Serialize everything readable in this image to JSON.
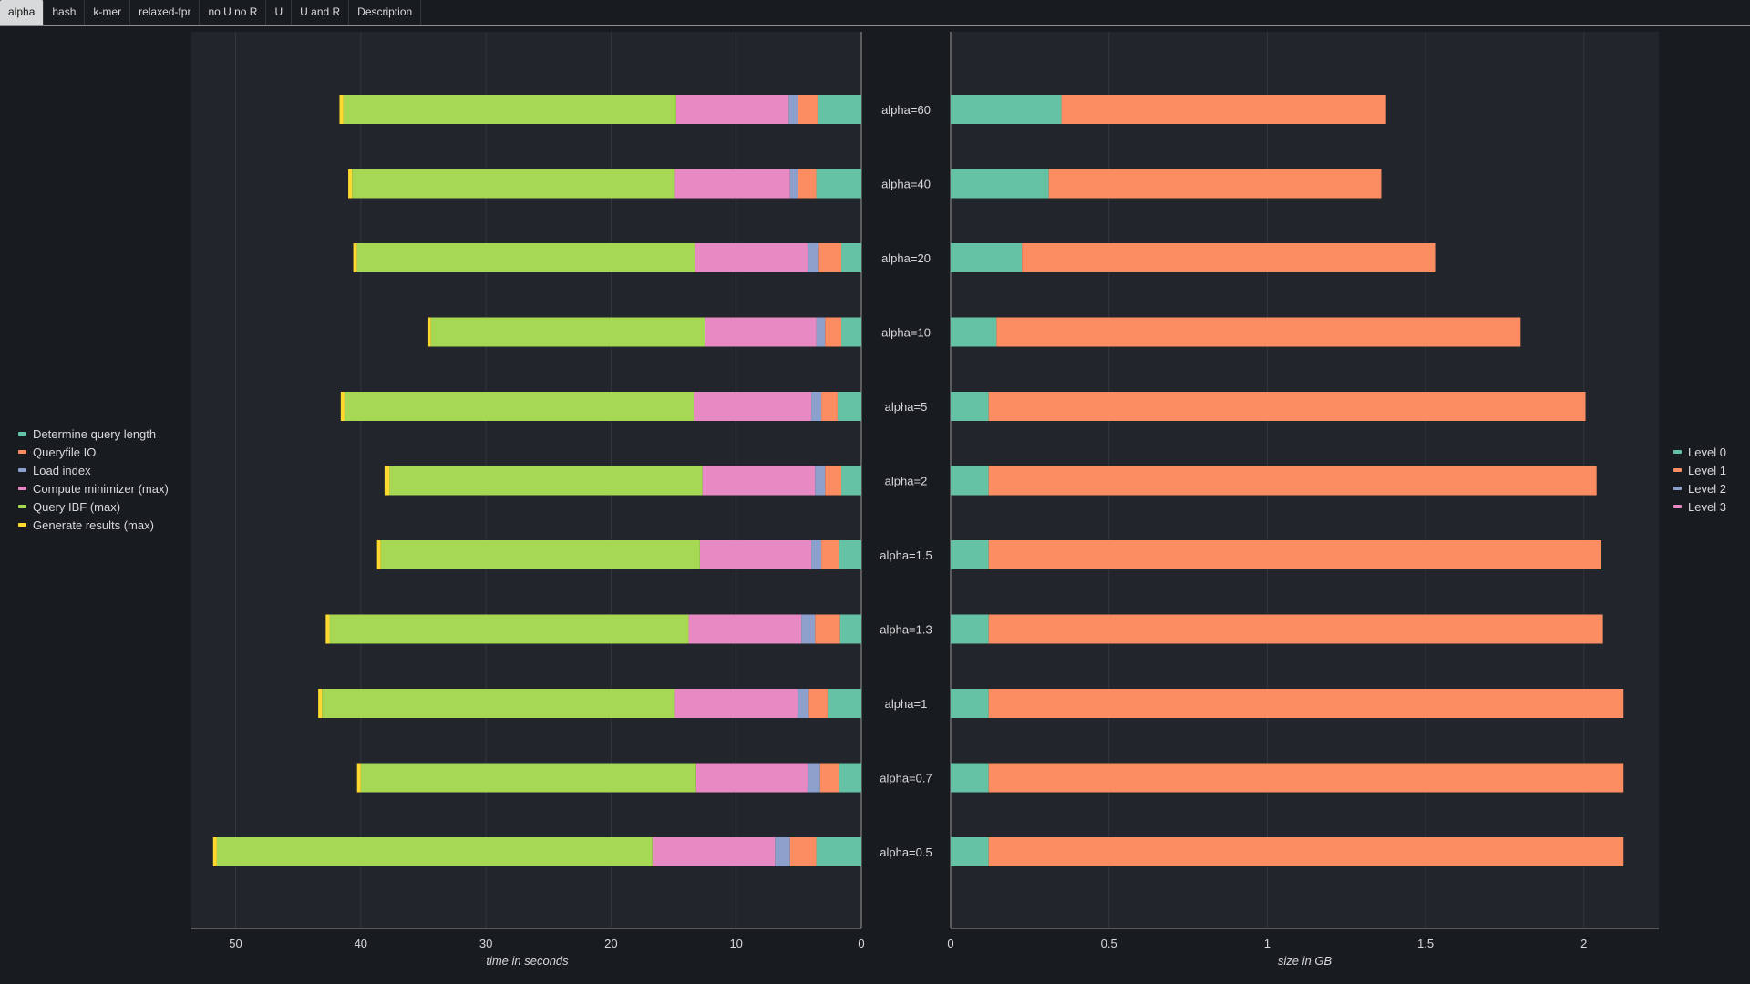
{
  "tabs": [
    {
      "label": "alpha",
      "active": true
    },
    {
      "label": "hash",
      "active": false
    },
    {
      "label": "k-mer",
      "active": false
    },
    {
      "label": "relaxed-fpr",
      "active": false
    },
    {
      "label": "no U no R",
      "active": false
    },
    {
      "label": "U",
      "active": false
    },
    {
      "label": "U and R",
      "active": false
    },
    {
      "label": "Description",
      "active": false
    }
  ],
  "colors": {
    "background": "#181b1f",
    "plot_bg": "#22252b",
    "Determine query length": "#66c2a5",
    "Queryfile IO": "#fc8d62",
    "Load index": "#8da0cb",
    "Compute minimizer (max)": "#e78ac3",
    "Query IBF (max)": "#a6d854",
    "Generate results (max)": "#ffd92f",
    "Level 0": "#66c2a5",
    "Level 1": "#fc8d62",
    "Level 2": "#8da0cb",
    "Level 3": "#e78ac3"
  },
  "chart_data": [
    {
      "type": "bar",
      "orientation": "horizontal",
      "stacked": true,
      "x_reversed": true,
      "xlabel": "time in seconds",
      "xlim": [
        0,
        53.5
      ],
      "xticks": [
        0,
        10,
        20,
        30,
        40,
        50
      ],
      "grid": true,
      "legend_position": "left",
      "categories": [
        "alpha=60",
        "alpha=40",
        "alpha=20",
        "alpha=10",
        "alpha=5",
        "alpha=2",
        "alpha=1.5",
        "alpha=1.3",
        "alpha=1",
        "alpha=0.7",
        "alpha=0.5"
      ],
      "series": [
        {
          "name": "Determine query length",
          "values": [
            3.5,
            3.6,
            1.6,
            1.6,
            1.9,
            1.6,
            1.8,
            1.7,
            2.7,
            1.8,
            3.6
          ]
        },
        {
          "name": "Queryfile IO",
          "values": [
            1.6,
            1.5,
            1.8,
            1.3,
            1.3,
            1.3,
            1.4,
            2.0,
            1.5,
            1.5,
            2.1
          ]
        },
        {
          "name": "Load index",
          "values": [
            0.7,
            0.6,
            0.9,
            0.7,
            0.8,
            0.8,
            0.8,
            1.1,
            0.9,
            1.0,
            1.2
          ]
        },
        {
          "name": "Compute minimizer (max)",
          "values": [
            9.0,
            9.2,
            9.0,
            8.9,
            9.4,
            9.0,
            8.9,
            9.0,
            9.8,
            8.9,
            9.8
          ]
        },
        {
          "name": "Query IBF (max)",
          "values": [
            26.6,
            25.8,
            27.0,
            21.9,
            27.9,
            25.0,
            25.5,
            28.7,
            28.2,
            26.8,
            34.8
          ]
        },
        {
          "name": "Generate results (max)",
          "values": [
            0.3,
            0.3,
            0.3,
            0.2,
            0.3,
            0.4,
            0.3,
            0.3,
            0.3,
            0.3,
            0.3
          ]
        }
      ]
    },
    {
      "type": "bar",
      "orientation": "horizontal",
      "stacked": true,
      "xlabel": "size in GB",
      "xlim": [
        0,
        2.23
      ],
      "xticks": [
        0,
        0.5,
        1,
        1.5,
        2
      ],
      "grid": true,
      "legend_position": "right",
      "categories": [
        "alpha=60",
        "alpha=40",
        "alpha=20",
        "alpha=10",
        "alpha=5",
        "alpha=2",
        "alpha=1.5",
        "alpha=1.3",
        "alpha=1",
        "alpha=0.7",
        "alpha=0.5"
      ],
      "series": [
        {
          "name": "Level 0",
          "values": [
            0.35,
            0.31,
            0.225,
            0.145,
            0.12,
            0.12,
            0.12,
            0.12,
            0.12,
            0.12,
            0.12
          ]
        },
        {
          "name": "Level 1",
          "values": [
            1.025,
            1.05,
            1.305,
            1.655,
            1.885,
            1.92,
            1.935,
            1.94,
            2.005,
            2.005,
            2.005
          ]
        },
        {
          "name": "Level 2",
          "values": [
            0,
            0,
            0,
            0,
            0,
            0,
            0,
            0,
            0,
            0,
            0
          ]
        },
        {
          "name": "Level 3",
          "values": [
            0,
            0,
            0,
            0,
            0,
            0,
            0,
            0,
            0,
            0,
            0
          ]
        }
      ]
    }
  ]
}
